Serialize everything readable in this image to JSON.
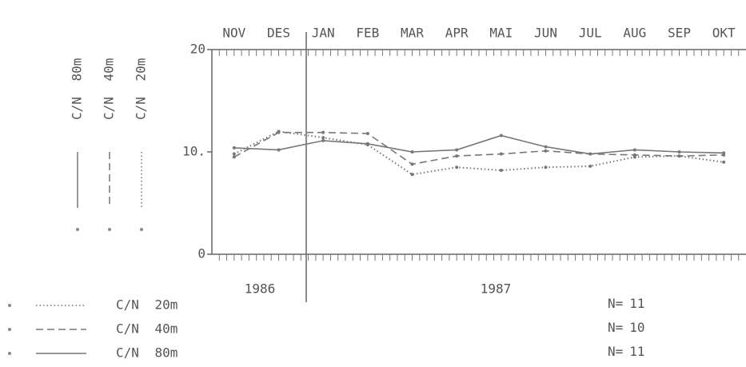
{
  "chart_data": {
    "type": "line",
    "categories": [
      "NOV",
      "DES",
      "JAN",
      "FEB",
      "MAR",
      "APR",
      "MAI",
      "JUN",
      "JUL",
      "AUG",
      "SEP",
      "OKT"
    ],
    "ylim": [
      0,
      20
    ],
    "yticks": [
      0,
      {
        "value": 10,
        "label": "10."
      },
      20
    ],
    "years": [
      "1986",
      "1987"
    ],
    "n_label": "N=",
    "series": [
      {
        "name": "C/N 20m",
        "color": "#777",
        "style": "dotted",
        "n": 11,
        "values": [
          9.8,
          12.0,
          11.4,
          10.7,
          7.8,
          8.5,
          8.2,
          8.5,
          8.6,
          9.5,
          9.6,
          9.0
        ]
      },
      {
        "name": "C/N 40m",
        "color": "#777",
        "style": "dashed",
        "n": 10,
        "values": [
          9.5,
          11.9,
          11.9,
          11.8,
          8.8,
          9.6,
          9.8,
          10.1,
          9.8,
          9.7,
          9.6,
          9.7
        ]
      },
      {
        "name": "C/N 80m",
        "color": "#777",
        "style": "solid",
        "n": 11,
        "values": [
          10.4,
          10.2,
          11.1,
          10.8,
          10.0,
          10.2,
          11.6,
          10.5,
          9.8,
          10.2,
          10.0,
          9.9
        ]
      }
    ]
  }
}
